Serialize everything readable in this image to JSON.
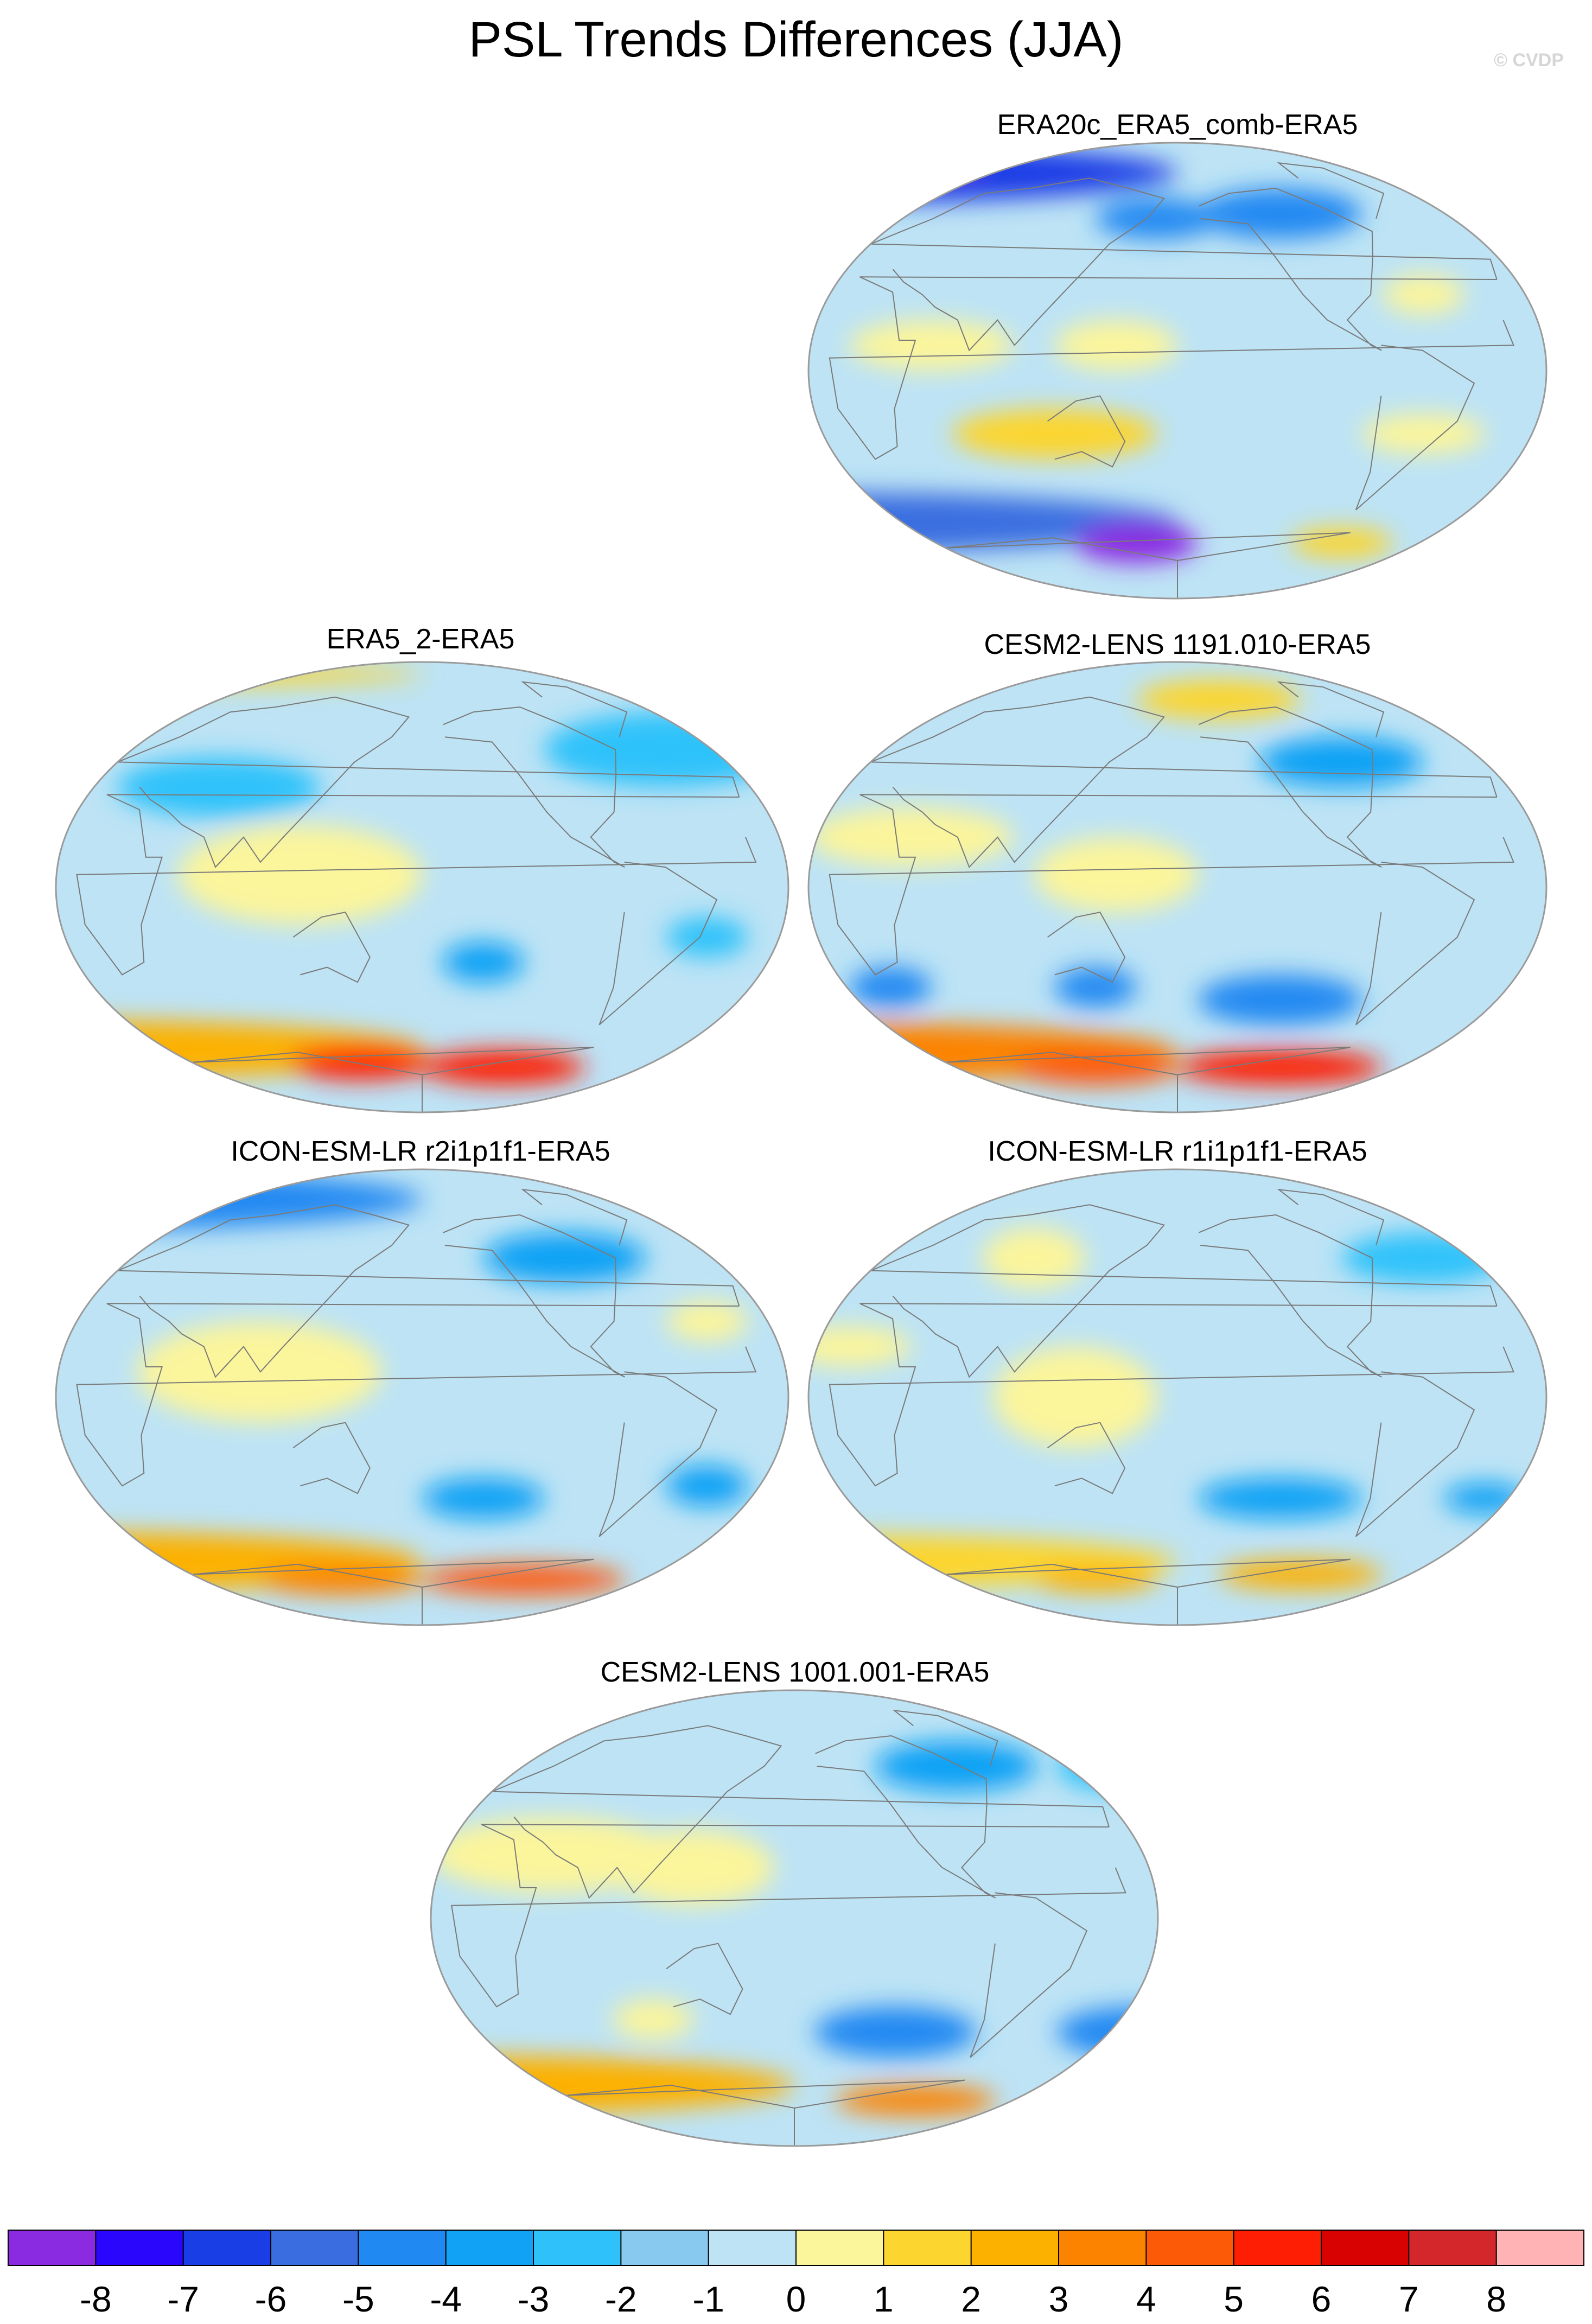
{
  "title": "PSL Trends Differences (JJA)",
  "copyright": "© CVDP",
  "colors": {
    "ocean_fill": "#bde3f5",
    "coast_line": "#7a7a7a",
    "land_blue": "#93cbee",
    "land_yellow": "#fbf49c"
  },
  "panels": [
    {
      "id": "era20c",
      "title": "ERA20c_ERA5_comb-ERA5",
      "blobs": [
        {
          "lon": 0,
          "lat": 78,
          "rx": 180,
          "ry": 12,
          "level": -6
        },
        {
          "lon": 40,
          "lat": 83,
          "rx": 45,
          "ry": 6,
          "level": -8
        },
        {
          "lon": -130,
          "lat": 62,
          "rx": 40,
          "ry": 10,
          "level": -4
        },
        {
          "lon": 170,
          "lat": 60,
          "rx": 30,
          "ry": 8,
          "level": -4
        },
        {
          "lon": 60,
          "lat": 10,
          "rx": 40,
          "ry": 10,
          "level": 1
        },
        {
          "lon": 150,
          "lat": 10,
          "rx": 30,
          "ry": 10,
          "level": 1
        },
        {
          "lon": -60,
          "lat": 30,
          "rx": 20,
          "ry": 8,
          "level": 1
        },
        {
          "lon": 120,
          "lat": -25,
          "rx": 50,
          "ry": 10,
          "level": 2
        },
        {
          "lon": -60,
          "lat": -25,
          "rx": 30,
          "ry": 8,
          "level": 1
        },
        {
          "lon": 0,
          "lat": -60,
          "rx": 180,
          "ry": 12,
          "level": -5
        },
        {
          "lon": 160,
          "lat": -68,
          "rx": 30,
          "ry": 8,
          "level": -8
        },
        {
          "lon": -100,
          "lat": -68,
          "rx": 25,
          "ry": 6,
          "level": 2
        }
      ]
    },
    {
      "id": "era5_2",
      "title": "ERA5_2-ERA5",
      "blobs": [
        {
          "lon": 0,
          "lat": 85,
          "rx": 180,
          "ry": 5,
          "level": 2
        },
        {
          "lon": 20,
          "lat": 78,
          "rx": 40,
          "ry": 8,
          "level": 2
        },
        {
          "lon": -60,
          "lat": 55,
          "rx": 60,
          "ry": 15,
          "level": -2
        },
        {
          "lon": 80,
          "lat": 40,
          "rx": 50,
          "ry": 12,
          "level": -2
        },
        {
          "lon": 120,
          "lat": 5,
          "rx": 60,
          "ry": 20,
          "level": 1
        },
        {
          "lon": -150,
          "lat": -30,
          "rx": 20,
          "ry": 8,
          "level": -3
        },
        {
          "lon": -40,
          "lat": -20,
          "rx": 20,
          "ry": 8,
          "level": -2
        },
        {
          "lon": 0,
          "lat": -65,
          "rx": 180,
          "ry": 12,
          "level": 3
        },
        {
          "lon": -140,
          "lat": -72,
          "rx": 40,
          "ry": 7,
          "level": 6
        },
        {
          "lon": 150,
          "lat": -70,
          "rx": 35,
          "ry": 7,
          "level": 6
        },
        {
          "lon": 10,
          "lat": -72,
          "rx": 30,
          "ry": 6,
          "level": 5
        }
      ]
    },
    {
      "id": "cesm2_1191",
      "title": "CESM2-LENS 1191.010-ERA5",
      "blobs": [
        {
          "lon": -160,
          "lat": 75,
          "rx": 40,
          "ry": 8,
          "level": 2
        },
        {
          "lon": -100,
          "lat": 50,
          "rx": 40,
          "ry": 10,
          "level": -3
        },
        {
          "lon": 50,
          "lat": 20,
          "rx": 50,
          "ry": 12,
          "level": 1
        },
        {
          "lon": 150,
          "lat": 5,
          "rx": 40,
          "ry": 15,
          "level": 1
        },
        {
          "lon": -130,
          "lat": -45,
          "rx": 40,
          "ry": 10,
          "level": -4
        },
        {
          "lon": 40,
          "lat": -40,
          "rx": 20,
          "ry": 8,
          "level": -4
        },
        {
          "lon": 140,
          "lat": -40,
          "rx": 20,
          "ry": 8,
          "level": -4
        },
        {
          "lon": 0,
          "lat": -66,
          "rx": 180,
          "ry": 12,
          "level": 4
        },
        {
          "lon": -130,
          "lat": -72,
          "rx": 50,
          "ry": 7,
          "level": 6
        },
        {
          "lon": 140,
          "lat": -72,
          "rx": 40,
          "ry": 7,
          "level": 5
        }
      ]
    },
    {
      "id": "icon_r2",
      "title": "ICON-ESM-LR r2i1p1f1-ERA5",
      "blobs": [
        {
          "lon": 0,
          "lat": 78,
          "rx": 180,
          "ry": 12,
          "level": -4
        },
        {
          "lon": 20,
          "lat": 80,
          "rx": 40,
          "ry": 6,
          "level": -5
        },
        {
          "lon": -110,
          "lat": 55,
          "rx": 40,
          "ry": 10,
          "level": -3
        },
        {
          "lon": 100,
          "lat": 10,
          "rx": 60,
          "ry": 20,
          "level": 1
        },
        {
          "lon": -40,
          "lat": 30,
          "rx": 20,
          "ry": 8,
          "level": 1
        },
        {
          "lon": -150,
          "lat": -40,
          "rx": 30,
          "ry": 8,
          "level": -3
        },
        {
          "lon": -40,
          "lat": -35,
          "rx": 20,
          "ry": 8,
          "level": -3
        },
        {
          "lon": 0,
          "lat": -65,
          "rx": 180,
          "ry": 12,
          "level": 3
        },
        {
          "lon": -130,
          "lat": -72,
          "rx": 50,
          "ry": 6,
          "level": 5
        },
        {
          "lon": 140,
          "lat": -72,
          "rx": 40,
          "ry": 6,
          "level": 4
        }
      ]
    },
    {
      "id": "icon_r1",
      "title": "ICON-ESM-LR r1i1p1f1-ERA5",
      "blobs": [
        {
          "lon": 110,
          "lat": 55,
          "rx": 25,
          "ry": 12,
          "level": 1
        },
        {
          "lon": -60,
          "lat": 55,
          "rx": 40,
          "ry": 10,
          "level": -2
        },
        {
          "lon": 20,
          "lat": 20,
          "rx": 30,
          "ry": 8,
          "level": 1
        },
        {
          "lon": 130,
          "lat": 0,
          "rx": 40,
          "ry": 20,
          "level": 1
        },
        {
          "lon": -130,
          "lat": -40,
          "rx": 40,
          "ry": 8,
          "level": -3
        },
        {
          "lon": -30,
          "lat": -40,
          "rx": 20,
          "ry": 6,
          "level": -3
        },
        {
          "lon": 0,
          "lat": -65,
          "rx": 180,
          "ry": 11,
          "level": 2
        },
        {
          "lon": -120,
          "lat": -70,
          "rx": 40,
          "ry": 6,
          "level": 3
        },
        {
          "lon": 140,
          "lat": -72,
          "rx": 30,
          "ry": 5,
          "level": 3
        }
      ]
    },
    {
      "id": "cesm2_1001",
      "title": "CESM2-LENS 1001.001-ERA5",
      "blobs": [
        {
          "lon": -100,
          "lat": 60,
          "rx": 40,
          "ry": 10,
          "level": -3
        },
        {
          "lon": -20,
          "lat": 60,
          "rx": 30,
          "ry": 10,
          "level": -2
        },
        {
          "lon": 60,
          "lat": 25,
          "rx": 60,
          "ry": 15,
          "level": 1
        },
        {
          "lon": 130,
          "lat": 20,
          "rx": 40,
          "ry": 15,
          "level": 1
        },
        {
          "lon": -130,
          "lat": -45,
          "rx": 40,
          "ry": 10,
          "level": -4
        },
        {
          "lon": -10,
          "lat": -45,
          "rx": 40,
          "ry": 10,
          "level": -4
        },
        {
          "lon": 110,
          "lat": -40,
          "rx": 20,
          "ry": 8,
          "level": 1
        },
        {
          "lon": 0,
          "lat": -66,
          "rx": 180,
          "ry": 12,
          "level": 3
        },
        {
          "lon": -120,
          "lat": -72,
          "rx": 40,
          "ry": 6,
          "level": 4
        }
      ]
    }
  ],
  "colorbar": {
    "labels": [
      "-8",
      "-7",
      "-6",
      "-5",
      "-4",
      "-3",
      "-2",
      "-1",
      "0",
      "1",
      "2",
      "3",
      "4",
      "5",
      "6",
      "7",
      "8"
    ],
    "colors": [
      "#8a2be2",
      "#2a06fc",
      "#1a3ee6",
      "#3a6ee0",
      "#2189f2",
      "#11a2f5",
      "#2fc2fa",
      "#87c9ef",
      "#bde3f5",
      "#fbf59b",
      "#fcd52e",
      "#fcb100",
      "#fc8300",
      "#fd5a07",
      "#fe1e04",
      "#d80202",
      "#d4272b",
      "#ffb3b5"
    ]
  }
}
